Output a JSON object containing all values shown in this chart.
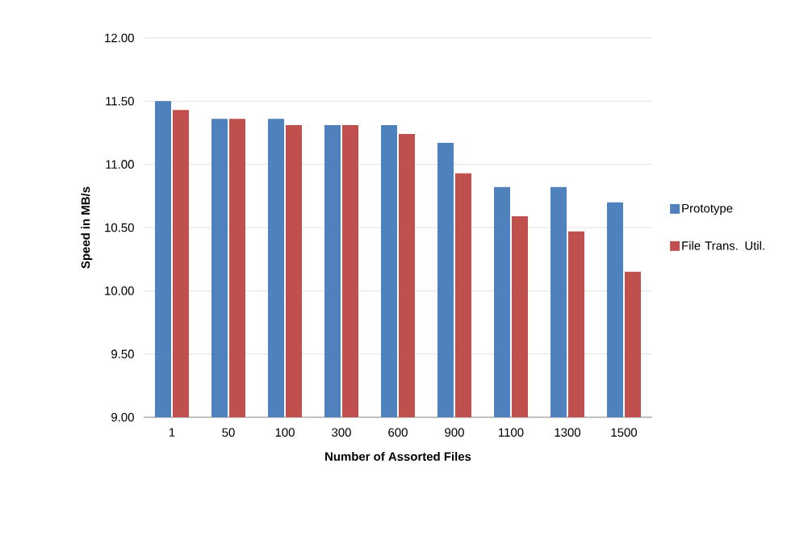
{
  "chart_data": {
    "type": "bar",
    "xlabel": "Number of Assorted Files",
    "ylabel": "Speed in MB/s",
    "categories": [
      "1",
      "50",
      "100",
      "300",
      "600",
      "900",
      "1100",
      "1300",
      "1500"
    ],
    "series": [
      {
        "name": "Prototype",
        "color": "#4f81bd",
        "values": [
          11.5,
          11.36,
          11.36,
          11.31,
          11.31,
          11.17,
          10.82,
          10.82,
          10.7
        ]
      },
      {
        "name": "File Trans. Util.",
        "color": "#c0504d",
        "values": [
          11.43,
          11.36,
          11.31,
          11.31,
          11.24,
          10.93,
          10.59,
          10.47,
          10.15
        ]
      }
    ],
    "ylim": [
      9,
      12
    ],
    "yticks": [
      {
        "value": 9,
        "label": "9.00"
      },
      {
        "value": 9.5,
        "label": "9.50"
      },
      {
        "value": 10,
        "label": "10.00"
      },
      {
        "value": 10.5,
        "label": "10.50"
      },
      {
        "value": 11,
        "label": "11.00"
      },
      {
        "value": 11.5,
        "label": "11.50"
      },
      {
        "value": 12,
        "label": "12.00"
      }
    ],
    "grid": "y",
    "legend": "right"
  }
}
